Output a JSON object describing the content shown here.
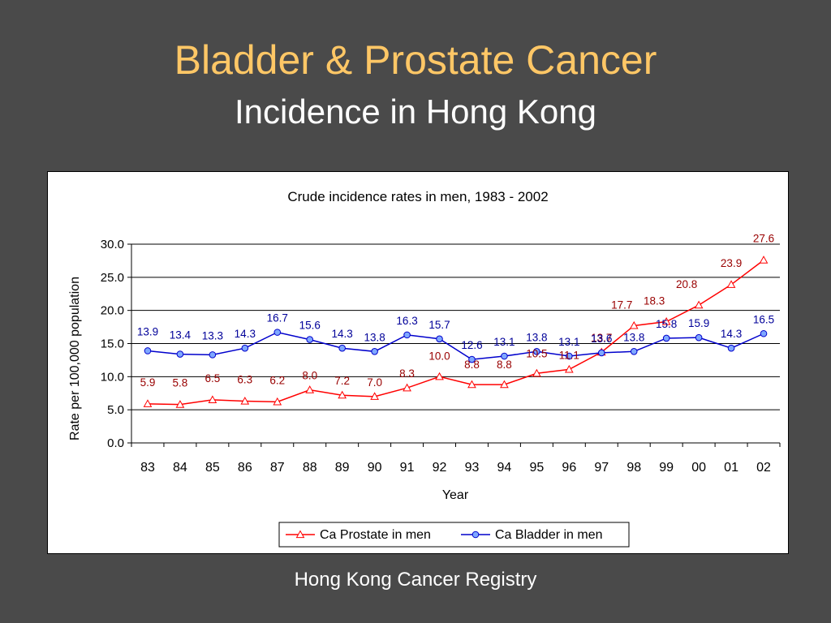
{
  "slide": {
    "title": "Bladder & Prostate Cancer",
    "subtitle": "Incidence in Hong Kong",
    "footer": "Hong Kong Cancer Registry"
  },
  "chart_data": {
    "type": "line",
    "title": "Crude incidence rates in men, 1983 - 2002",
    "xlabel": "Year",
    "ylabel": "Rate per 100,000 population",
    "categories": [
      "83",
      "84",
      "85",
      "86",
      "87",
      "88",
      "89",
      "90",
      "91",
      "92",
      "93",
      "94",
      "95",
      "96",
      "97",
      "98",
      "99",
      "00",
      "01",
      "02"
    ],
    "ylim": [
      0,
      30
    ],
    "yticks": [
      "0.0",
      "5.0",
      "10.0",
      "15.0",
      "20.0",
      "25.0",
      "30.0"
    ],
    "grid": true,
    "legend_position": "bottom",
    "series": [
      {
        "name": "Ca Prostate in men",
        "marker": "triangle",
        "color": "#ff0000",
        "label_color": "#990000",
        "values": [
          5.9,
          5.8,
          6.5,
          6.3,
          6.2,
          8.0,
          7.2,
          7.0,
          8.3,
          10.0,
          8.8,
          8.8,
          10.5,
          11.1,
          13.7,
          17.7,
          18.3,
          20.8,
          23.9,
          27.6
        ],
        "labels": [
          "5.9",
          "5.8",
          "6.5",
          "6.3",
          "6.2",
          "8.0",
          "7.2",
          "7.0",
          "8.3",
          "10.0",
          "8.8",
          "8.8",
          "10.5",
          "11.1",
          "13.7",
          "17.7",
          "18.3",
          "20.8",
          "23.9",
          "27.6"
        ]
      },
      {
        "name": "Ca Bladder in men",
        "marker": "circle",
        "color": "#0000cc",
        "label_color": "#000099",
        "values": [
          13.9,
          13.4,
          13.3,
          14.3,
          16.7,
          15.6,
          14.3,
          13.8,
          16.3,
          15.7,
          12.6,
          13.1,
          13.8,
          13.1,
          13.6,
          13.8,
          15.8,
          15.9,
          14.3,
          16.5
        ],
        "labels": [
          "13.9",
          "13.4",
          "13.3",
          "14.3",
          "16.7",
          "15.6",
          "14.3",
          "13.8",
          "16.3",
          "15.7",
          "12.6",
          "13.1",
          "13.8",
          "13.1",
          "13.6",
          "13.8",
          "15.8",
          "15.9",
          "14.3",
          "16.5"
        ]
      }
    ]
  }
}
